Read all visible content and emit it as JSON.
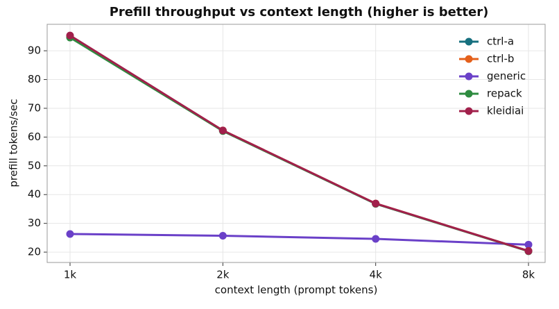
{
  "chart_data": {
    "type": "line",
    "title": "Prefill throughput vs context length (higher is better)",
    "x_label": "context length (prompt tokens)",
    "y_label": "prefill tokens/sec",
    "categories": [
      "1k",
      "2k",
      "4k",
      "8k"
    ],
    "series": [
      {
        "name": "ctrl-a",
        "color": "#17707f",
        "values": [
          94.8,
          62.2,
          36.8,
          20.4
        ]
      },
      {
        "name": "ctrl-b",
        "color": "#e4601b",
        "values": [
          95.1,
          62.3,
          36.9,
          20.4
        ]
      },
      {
        "name": "generic",
        "color": "#6a40c8",
        "values": [
          26.3,
          25.7,
          24.6,
          22.6
        ]
      },
      {
        "name": "repack",
        "color": "#2e8b40",
        "values": [
          94.6,
          62.1,
          36.8,
          20.3
        ]
      },
      {
        "name": "kleidiai",
        "color": "#a1204b",
        "values": [
          95.3,
          62.3,
          36.9,
          20.4
        ]
      }
    ],
    "ylim": [
      16.4,
      99.2
    ],
    "yticks": [
      20,
      30,
      40,
      50,
      60,
      70,
      80,
      90
    ],
    "grid": true,
    "legend": "upper-right"
  }
}
